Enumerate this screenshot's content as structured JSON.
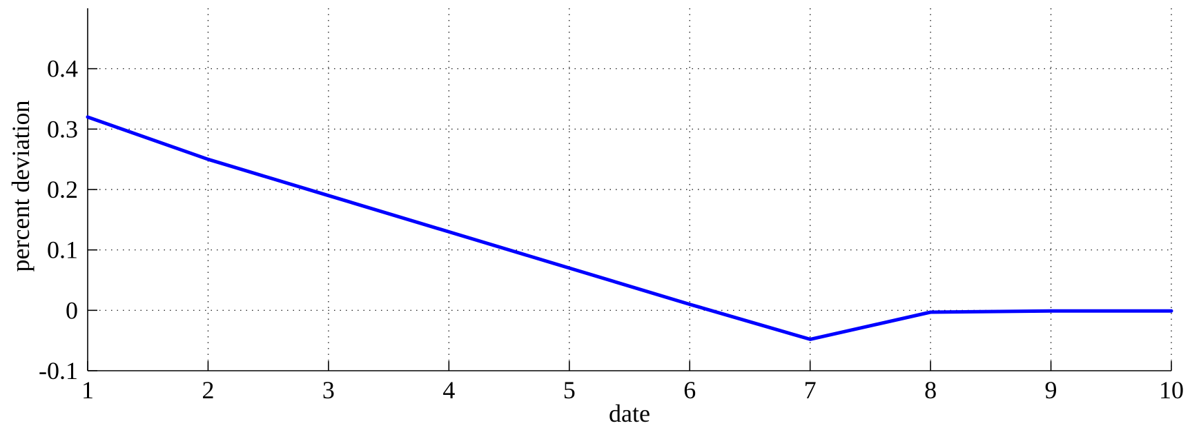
{
  "chart_data": {
    "type": "line",
    "xlabel": "date",
    "ylabel": "percent deviation",
    "xlim": [
      1,
      10
    ],
    "ylim": [
      -0.1,
      0.5
    ],
    "xticks": [
      1,
      2,
      3,
      4,
      5,
      6,
      7,
      8,
      9,
      10
    ],
    "yticks": [
      -0.1,
      0,
      0.1,
      0.2,
      0.3,
      0.4
    ],
    "ytick_labels": [
      "-0.1",
      "0",
      "0.1",
      "0.2",
      "0.3",
      "0.4"
    ],
    "grid": true,
    "series": [
      {
        "color": "#0000ff",
        "x": [
          1,
          2,
          3,
          4,
          5,
          6,
          7,
          8,
          9,
          10
        ],
        "y": [
          0.32,
          0.25,
          0.19,
          0.13,
          0.07,
          0.01,
          -0.048,
          -0.003,
          -0.001,
          -0.001
        ]
      }
    ]
  }
}
